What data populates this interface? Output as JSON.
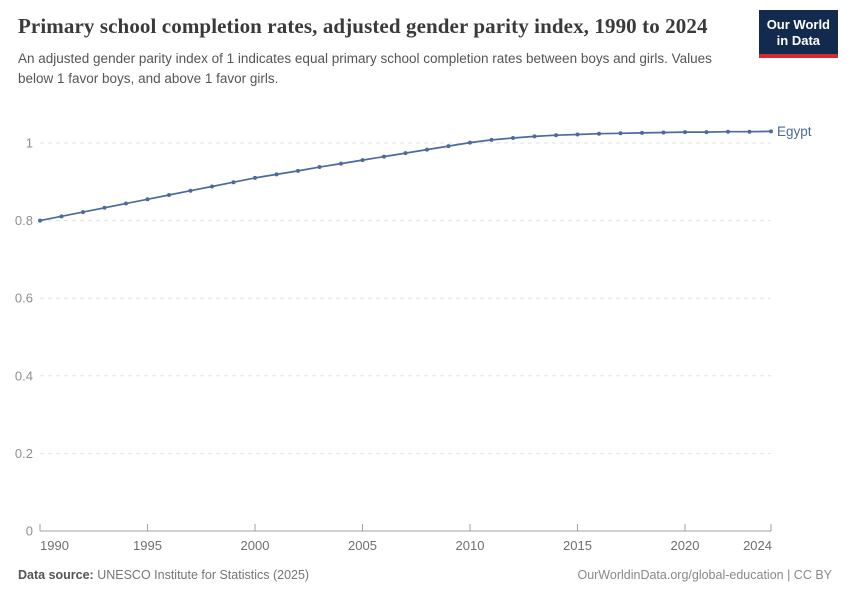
{
  "header": {
    "title": "Primary school completion rates, adjusted gender parity index, 1990 to 2024",
    "subtitle": "An adjusted gender parity index of 1 indicates equal primary school completion rates between boys and girls. Values below 1 favor boys, and above 1 favor girls."
  },
  "logo": {
    "line1": "Our World",
    "line2": "in Data",
    "bg_color": "#122A4E",
    "accent_color": "#D42B2F"
  },
  "chart_data": {
    "type": "line",
    "title": "Primary school completion rates, adjusted gender parity index, 1990 to 2024",
    "xlabel": "",
    "ylabel": "",
    "xlim": [
      1990,
      2024
    ],
    "ylim": [
      0,
      1.05
    ],
    "x_ticks": [
      1990,
      1995,
      2000,
      2005,
      2010,
      2015,
      2020,
      2024
    ],
    "y_ticks": [
      0,
      0.2,
      0.4,
      0.6,
      0.8,
      1
    ],
    "grid": "horizontal-dashed",
    "legend_position": "end-of-line-label",
    "series": [
      {
        "name": "Egypt",
        "color": "#4C6A9C",
        "years": [
          1990,
          1991,
          1992,
          1993,
          1994,
          1995,
          1996,
          1997,
          1998,
          1999,
          2000,
          2001,
          2002,
          2003,
          2004,
          2005,
          2006,
          2007,
          2008,
          2009,
          2010,
          2011,
          2012,
          2013,
          2014,
          2015,
          2016,
          2017,
          2018,
          2019,
          2020,
          2021,
          2022,
          2023,
          2024
        ],
        "values": [
          0.8,
          0.811,
          0.822,
          0.833,
          0.844,
          0.855,
          0.866,
          0.877,
          0.888,
          0.899,
          0.91,
          0.919,
          0.928,
          0.938,
          0.947,
          0.956,
          0.965,
          0.974,
          0.983,
          0.992,
          1.001,
          1.008,
          1.013,
          1.017,
          1.02,
          1.022,
          1.024,
          1.025,
          1.026,
          1.027,
          1.028,
          1.028,
          1.029,
          1.029,
          1.03
        ]
      }
    ],
    "colors": {
      "gridline": "#e2e2e2",
      "axis_line": "#a0a0a0",
      "y_tick_label": "#8f8f8f",
      "x_tick_label": "#6f6f6f"
    }
  },
  "footer": {
    "source_label": "Data source:",
    "source_text": " UNESCO Institute for Statistics (2025)",
    "credit": "OurWorldinData.org/global-education | CC BY"
  }
}
